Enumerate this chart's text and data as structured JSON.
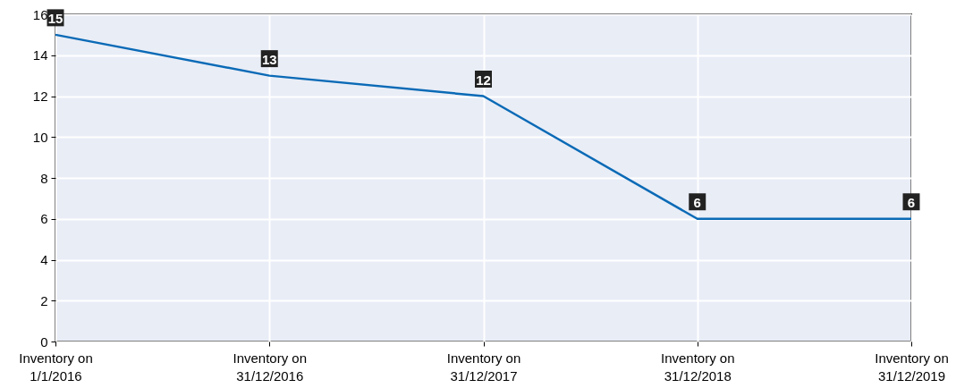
{
  "chart_data": {
    "type": "line",
    "categories": [
      "Inventory on 1/1/2016",
      "Inventory on 31/12/2016",
      "Inventory on 31/12/2017",
      "Inventory on 31/12/2018",
      "Inventory on 31/12/2019"
    ],
    "series": [
      {
        "color": "#0a6ab6",
        "values": [
          15,
          13,
          12,
          6,
          6
        ]
      }
    ],
    "ylim": [
      0,
      16
    ],
    "yticks": [
      0,
      2,
      4,
      6,
      8,
      10,
      12,
      14,
      16
    ],
    "grid": true,
    "data_labels": true,
    "marker": "none"
  }
}
